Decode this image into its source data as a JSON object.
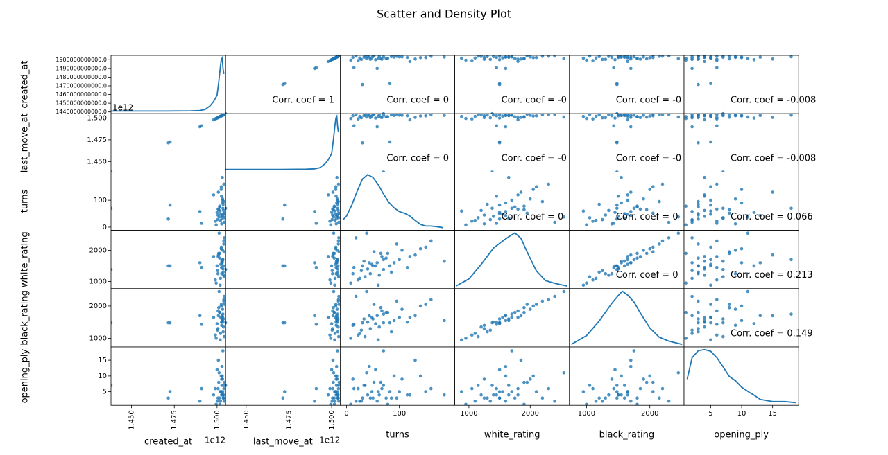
{
  "chart_data": {
    "type": "scatter_matrix",
    "title": "Scatter and Density Plot",
    "color": "#1f77b4",
    "variables": [
      {
        "name": "created_at",
        "lim": [
          1438000000000,
          1505000000000
        ],
        "yticks": [
          {
            "value": 1440000000000,
            "label": "1440000000000.0"
          },
          {
            "value": 1450000000000,
            "label": "1450000000000.0"
          },
          {
            "value": 1460000000000,
            "label": "1460000000000.0"
          },
          {
            "value": 1470000000000,
            "label": "1470000000000.0"
          },
          {
            "value": 1480000000000,
            "label": "1480000000000.0"
          },
          {
            "value": 1490000000000,
            "label": "1490000000000.0"
          },
          {
            "value": 1500000000000,
            "label": "1500000000000.0"
          }
        ],
        "xticks": [
          {
            "value": 1450000000000,
            "label": "1.450"
          },
          {
            "value": 1475000000000,
            "label": "1.475"
          },
          {
            "value": 1500000000000,
            "label": "1.500"
          }
        ],
        "xtick_rotation": 90,
        "x_offset_label": "1e12",
        "density": {
          "x": [
            1438000000000,
            1450000000000,
            1470000000000,
            1485000000000,
            1490000000000,
            1493000000000,
            1496000000000,
            1498000000000,
            1500000000000,
            1501000000000,
            1502000000000,
            1502500000000,
            1503000000000,
            1503500000000,
            1504000000000
          ],
          "y": [
            0,
            0,
            0,
            0.003,
            0.01,
            0.03,
            0.1,
            0.18,
            0.3,
            0.55,
            0.85,
            0.97,
            1.0,
            0.8,
            0.7
          ]
        }
      },
      {
        "name": "last_move_at",
        "lim": [
          1438000000000,
          1505000000000
        ],
        "yticks": [
          {
            "value": 1450000000000,
            "label": "1.450"
          },
          {
            "value": 1475000000000,
            "label": "1.475"
          },
          {
            "value": 1500000000000,
            "label": "1.500"
          }
        ],
        "xticks": [
          {
            "value": 1450000000000,
            "label": "1.450"
          },
          {
            "value": 1475000000000,
            "label": "1.475"
          },
          {
            "value": 1500000000000,
            "label": "1.500"
          }
        ],
        "xtick_rotation": 90,
        "x_offset_label": "1e12",
        "y_offset_label": "1e12",
        "density": {
          "x": [
            1438000000000,
            1450000000000,
            1470000000000,
            1485000000000,
            1490000000000,
            1493000000000,
            1496000000000,
            1498000000000,
            1500000000000,
            1501000000000,
            1502000000000,
            1502500000000,
            1503000000000,
            1503500000000,
            1504000000000
          ],
          "y": [
            0,
            0,
            0,
            0.003,
            0.01,
            0.03,
            0.1,
            0.18,
            0.3,
            0.55,
            0.85,
            0.97,
            1.0,
            0.8,
            0.7
          ]
        }
      },
      {
        "name": "turns",
        "lim": [
          -12,
          205
        ],
        "yticks": [
          0,
          100
        ],
        "xticks": [
          0,
          100
        ],
        "density": {
          "x": [
            -7,
            0,
            10,
            20,
            30,
            40,
            50,
            60,
            70,
            80,
            90,
            100,
            110,
            120,
            130,
            140,
            150,
            160,
            170,
            183
          ],
          "y": [
            0.18,
            0.25,
            0.45,
            0.7,
            0.92,
            1.0,
            0.95,
            0.82,
            0.65,
            0.5,
            0.4,
            0.33,
            0.3,
            0.25,
            0.17,
            0.1,
            0.07,
            0.07,
            0.06,
            0.04
          ]
        }
      },
      {
        "name": "white_rating",
        "lim": [
          770,
          2640
        ],
        "yticks": [
          1000,
          2000
        ],
        "xticks": [
          1000,
          2000
        ],
        "density": {
          "x": [
            790,
            1000,
            1200,
            1400,
            1550,
            1650,
            1750,
            1850,
            1950,
            2100,
            2250,
            2400,
            2600
          ],
          "y": [
            0.02,
            0.15,
            0.42,
            0.72,
            0.85,
            0.93,
            1.0,
            0.9,
            0.65,
            0.3,
            0.12,
            0.07,
            0.02
          ]
        }
      },
      {
        "name": "black_rating",
        "lim": [
          730,
          2540
        ],
        "yticks": [
          1000,
          2000
        ],
        "xticks": [
          1000,
          2000
        ],
        "density": {
          "x": [
            760,
            1000,
            1200,
            1400,
            1500,
            1565,
            1650,
            1750,
            1850,
            2000,
            2150,
            2300,
            2510
          ],
          "y": [
            0.02,
            0.18,
            0.45,
            0.78,
            0.92,
            1.0,
            0.93,
            0.8,
            0.6,
            0.32,
            0.15,
            0.08,
            0.02
          ]
        }
      },
      {
        "name": "opening_ply",
        "lim": [
          0.7,
          19.2
        ],
        "yticks": [
          5,
          10,
          15
        ],
        "xticks": [
          5,
          10,
          15
        ],
        "density": {
          "x": [
            1.2,
            2,
            3,
            4,
            5,
            6,
            7,
            8,
            9,
            10,
            11,
            12,
            13,
            15,
            17,
            18.8
          ],
          "y": [
            0.45,
            0.85,
            0.98,
            1.0,
            0.97,
            0.85,
            0.68,
            0.5,
            0.42,
            0.3,
            0.22,
            0.15,
            0.07,
            0.03,
            0.03,
            0.01
          ]
        }
      }
    ],
    "points": [
      [
        1438000000000,
        1438000000000,
        70,
        1380,
        1480,
        7
      ],
      [
        1471500000000,
        1471500000000,
        30,
        1500,
        1480,
        3
      ],
      [
        1472500000000,
        1472500000000,
        82,
        1500,
        1480,
        5
      ],
      [
        1490000000000,
        1490000000000,
        58,
        1600,
        1700,
        2
      ],
      [
        1491000000000,
        1491000000000,
        14,
        1450,
        1430,
        6
      ],
      [
        1498000000000,
        1498000000000,
        120,
        1800,
        1650,
        4
      ],
      [
        1500500000000,
        1500500000000,
        45,
        1250,
        1300,
        3
      ],
      [
        1501000000000,
        1501000000000,
        65,
        1900,
        1950,
        8
      ],
      [
        1502000000000,
        1502000000000,
        25,
        1100,
        1150,
        2
      ],
      [
        1502500000000,
        1502500000000,
        150,
        2100,
        2050,
        5
      ],
      [
        1503000000000,
        1503000000000,
        90,
        1600,
        1550,
        10
      ],
      [
        1503500000000,
        1503500000000,
        40,
        1400,
        1500,
        4
      ],
      [
        1504000000000,
        1504000000000,
        160,
        2300,
        2200,
        6
      ],
      [
        1499500000000,
        1499500000000,
        8,
        950,
        1000,
        1
      ],
      [
        1500000000000,
        1500000000000,
        55,
        1500,
        1450,
        12
      ],
      [
        1501500000000,
        1501500000000,
        75,
        1750,
        1800,
        3
      ],
      [
        1502800000000,
        1502800000000,
        33,
        1650,
        1600,
        7
      ],
      [
        1503200000000,
        1503200000000,
        105,
        2000,
        1900,
        9
      ],
      [
        1503800000000,
        1503800000000,
        62,
        1200,
        1350,
        4
      ],
      [
        1504200000000,
        1504200000000,
        18,
        2400,
        2300,
        2
      ],
      [
        1500800000000,
        1500800000000,
        130,
        1850,
        1700,
        15
      ],
      [
        1502200000000,
        1502200000000,
        48,
        1550,
        1650,
        5
      ],
      [
        1503600000000,
        1503600000000,
        85,
        1300,
        1200,
        3
      ],
      [
        1501200000000,
        1501200000000,
        38,
        2550,
        2450,
        11
      ],
      [
        1499000000000,
        1499000000000,
        22,
        1050,
        1100,
        6
      ],
      [
        1503400000000,
        1503400000000,
        70,
        1700,
        1750,
        18
      ],
      [
        1502600000000,
        1502600000000,
        115,
        1450,
        1500,
        4
      ],
      [
        1504400000000,
        1504400000000,
        52,
        1950,
        2050,
        8
      ],
      [
        1500300000000,
        1500300000000,
        28,
        1350,
        1250,
        2
      ],
      [
        1503900000000,
        1503900000000,
        95,
        2200,
        2150,
        3
      ],
      [
        1501800000000,
        1501800000000,
        60,
        880,
        950,
        5
      ],
      [
        1502900000000,
        1502900000000,
        43,
        1600,
        1700,
        13
      ],
      [
        1503100000000,
        1503100000000,
        185,
        1650,
        1550,
        4
      ],
      [
        1500600000000,
        1500600000000,
        67,
        1800,
        1850,
        6
      ],
      [
        1504100000000,
        1504100000000,
        35,
        1150,
        1050,
        7
      ],
      [
        1502400000000,
        1502400000000,
        140,
        2050,
        2000,
        10
      ],
      [
        1503700000000,
        1503700000000,
        50,
        1500,
        1600,
        3
      ],
      [
        1501600000000,
        1501600000000,
        78,
        1900,
        1800,
        1
      ],
      [
        1502700000000,
        1502700000000,
        12,
        1250,
        1400,
        9
      ],
      [
        1503300000000,
        1503300000000,
        100,
        1700,
        1650,
        5
      ]
    ],
    "corr_labels": [
      [
        null,
        "Corr. coef = 1",
        "Corr. coef = 0",
        "Corr. coef = -0",
        "Corr. coef = -0",
        "Corr. coef = -0.008"
      ],
      [
        null,
        null,
        "Corr. coef = 0",
        "Corr. coef = -0",
        "Corr. coef = -0",
        "Corr. coef = -0.008"
      ],
      [
        null,
        null,
        null,
        "Corr. coef = 0",
        "Corr. coef = 0",
        "Corr. coef = 0.066"
      ],
      [
        null,
        null,
        null,
        null,
        "Corr. coef = 0",
        "Corr. coef = 0.213"
      ],
      [
        null,
        null,
        null,
        null,
        null,
        "Corr. coef = 0.149"
      ],
      [
        null,
        null,
        null,
        null,
        null,
        null
      ]
    ]
  }
}
